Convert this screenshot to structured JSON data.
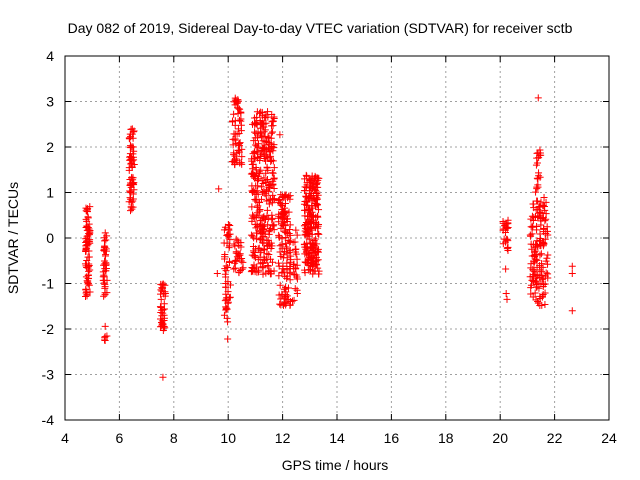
{
  "chart_data": {
    "type": "scatter",
    "title": "Day 082 of 2019, Sidereal Day-to-day VTEC variation (SDTVAR) for receiver sctb",
    "xlabel": "GPS time / hours",
    "ylabel": "SDTVAR / TECUs",
    "xlim": [
      4,
      24
    ],
    "ylim": [
      -4,
      4
    ],
    "xticks": [
      "4",
      "6",
      "8",
      "10",
      "12",
      "14",
      "16",
      "18",
      "20",
      "22",
      "24"
    ],
    "yticks": [
      "-4",
      "-3",
      "-2",
      "-1",
      "0",
      "1",
      "2",
      "3",
      "4"
    ],
    "grid": true,
    "marker": "+",
    "colors": {
      "points": "#ff0000",
      "grid": "#a0a0a0",
      "axes": "#000000"
    },
    "clusters": [
      {
        "x": [
          4.75,
          4.92
        ],
        "y": [
          -1.3,
          0.7
        ],
        "count": 80
      },
      {
        "x": [
          5.4,
          5.55
        ],
        "y": [
          -1.3,
          0.15
        ],
        "count": 40
      },
      {
        "x": [
          5.45,
          5.55
        ],
        "y": [
          -2.3,
          -1.8
        ],
        "count": 6
      },
      {
        "x": [
          6.35,
          6.55
        ],
        "y": [
          0.6,
          2.4
        ],
        "count": 70
      },
      {
        "x": [
          7.5,
          7.7
        ],
        "y": [
          -2.1,
          -1.0
        ],
        "count": 40
      },
      {
        "x": [
          9.85,
          10.1
        ],
        "y": [
          -1.9,
          0.3
        ],
        "count": 50
      },
      {
        "x": [
          10.15,
          10.5
        ],
        "y": [
          1.6,
          3.1
        ],
        "count": 60
      },
      {
        "x": [
          10.2,
          10.55
        ],
        "y": [
          -0.8,
          0.0
        ],
        "count": 30
      },
      {
        "x": [
          10.85,
          11.7
        ],
        "y": [
          -0.8,
          2.8
        ],
        "count": 320
      },
      {
        "x": [
          11.85,
          12.3
        ],
        "y": [
          -1.5,
          1.0
        ],
        "count": 130
      },
      {
        "x": [
          12.35,
          12.55
        ],
        "y": [
          -1.4,
          0.2
        ],
        "count": 25
      },
      {
        "x": [
          12.8,
          13.35
        ],
        "y": [
          -0.8,
          1.4
        ],
        "count": 220
      },
      {
        "x": [
          20.1,
          20.3
        ],
        "y": [
          -0.4,
          0.4
        ],
        "count": 25
      },
      {
        "x": [
          21.1,
          21.75
        ],
        "y": [
          -1.5,
          0.9
        ],
        "count": 150
      },
      {
        "x": [
          21.3,
          21.5
        ],
        "y": [
          1.0,
          1.95
        ],
        "count": 20
      }
    ],
    "points": [
      [
        9.65,
        1.08
      ],
      [
        9.6,
        -0.78
      ],
      [
        9.98,
        -2.22
      ],
      [
        21.4,
        3.08
      ],
      [
        7.6,
        -3.06
      ],
      [
        22.65,
        -1.6
      ],
      [
        22.65,
        -0.62
      ],
      [
        22.65,
        -0.78
      ],
      [
        20.2,
        -0.68
      ],
      [
        20.22,
        -1.22
      ],
      [
        20.25,
        -1.35
      ],
      [
        11.9,
        2.27
      ]
    ]
  }
}
